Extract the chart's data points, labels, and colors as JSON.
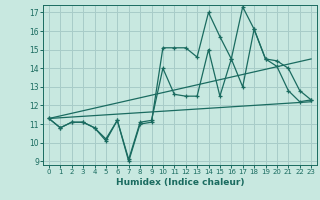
{
  "xlabel": "Humidex (Indice chaleur)",
  "bg_color": "#c8e8e0",
  "grid_color": "#a8ccc8",
  "line_color": "#1a6b60",
  "xlim": [
    -0.5,
    23.5
  ],
  "ylim": [
    8.8,
    17.4
  ],
  "yticks": [
    9,
    10,
    11,
    12,
    13,
    14,
    15,
    16,
    17
  ],
  "xticks": [
    0,
    1,
    2,
    3,
    4,
    5,
    6,
    7,
    8,
    9,
    10,
    11,
    12,
    13,
    14,
    15,
    16,
    17,
    18,
    19,
    20,
    21,
    22,
    23
  ],
  "series": {
    "line1_x": [
      0,
      1,
      2,
      3,
      4,
      5,
      6,
      7,
      8,
      9,
      10,
      11,
      12,
      13,
      14,
      15,
      16,
      17,
      18,
      19,
      20,
      21,
      22,
      23
    ],
    "line1_y": [
      11.3,
      10.8,
      11.1,
      11.1,
      10.8,
      10.1,
      11.2,
      9.0,
      11.0,
      11.1,
      15.1,
      15.1,
      15.1,
      14.6,
      17.0,
      15.7,
      14.5,
      17.3,
      16.1,
      14.5,
      14.1,
      12.8,
      12.2,
      12.3
    ],
    "line2_x": [
      0,
      1,
      2,
      3,
      4,
      5,
      6,
      7,
      8,
      9,
      10,
      11,
      12,
      13,
      14,
      15,
      16,
      17,
      18,
      19,
      20,
      21,
      22,
      23
    ],
    "line2_y": [
      11.3,
      10.8,
      11.1,
      11.1,
      10.8,
      10.2,
      11.2,
      9.1,
      11.1,
      11.2,
      14.0,
      12.6,
      12.5,
      12.5,
      15.0,
      12.5,
      14.5,
      13.0,
      16.1,
      14.5,
      14.4,
      14.0,
      12.8,
      12.3
    ],
    "trend1_x": [
      0,
      23
    ],
    "trend1_y": [
      11.3,
      14.5
    ],
    "trend2_x": [
      0,
      23
    ],
    "trend2_y": [
      11.3,
      12.2
    ]
  }
}
